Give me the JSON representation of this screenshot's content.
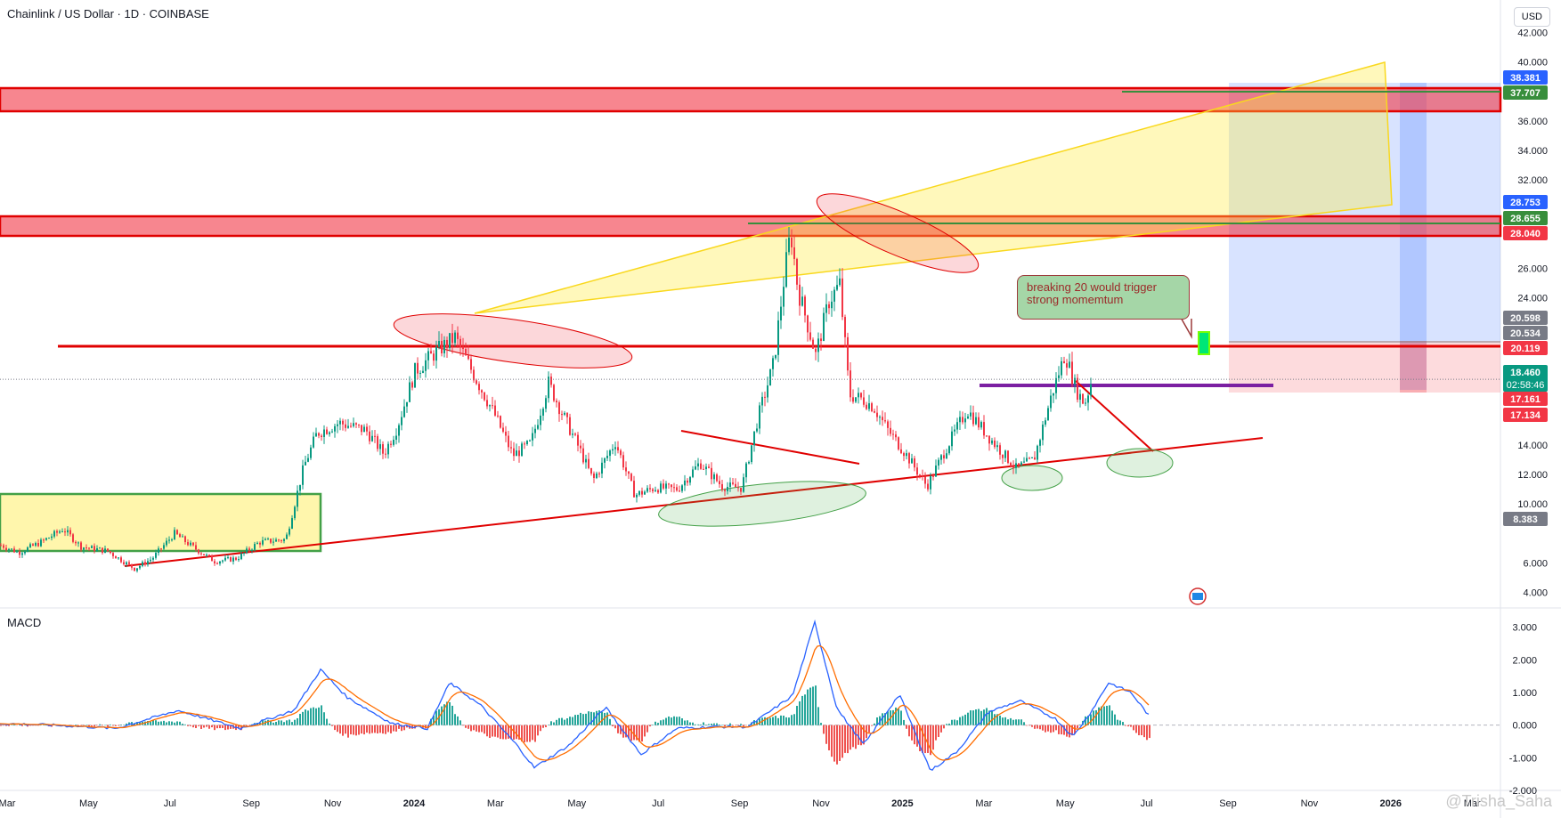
{
  "header": {
    "title": "Chainlink / US Dollar · 1D · COINBASE",
    "currency_button": "USD",
    "indicator_label": "MACD",
    "watermark": "@Trisha_Saha"
  },
  "annotation": {
    "text_line1": "breaking 20 would trigger",
    "text_line2": "strong momemtum"
  },
  "chart_data": {
    "type": "candlestick",
    "price_axis": {
      "ticks": [
        "42.000",
        "40.000",
        "36.000",
        "34.000",
        "32.000",
        "26.000",
        "24.000",
        "14.000",
        "12.000",
        "10.000",
        "6.000",
        "4.000"
      ],
      "ylim": [
        3.0,
        43.0
      ]
    },
    "price_labels": [
      {
        "value": "38.381",
        "color": "#2962ff"
      },
      {
        "value": "37.707",
        "color": "#388e3c"
      },
      {
        "value": "28.753",
        "color": "#2962ff"
      },
      {
        "value": "28.655",
        "color": "#388e3c"
      },
      {
        "value": "28.040",
        "color": "#f23645"
      },
      {
        "value": "20.598",
        "color": "#787b86"
      },
      {
        "value": "20.534",
        "color": "#787b86"
      },
      {
        "value": "20.119",
        "color": "#f23645"
      },
      {
        "value": "18.460",
        "color": "#089981",
        "extra": "02:58:46"
      },
      {
        "value": "17.161",
        "color": "#f23645"
      },
      {
        "value": "17.134",
        "color": "#f23645"
      },
      {
        "value": "8.383",
        "color": "#787b86"
      }
    ],
    "macd_axis": {
      "ticks": [
        "3.000",
        "2.000",
        "1.000",
        "0.000",
        "-1.000",
        "-2.000"
      ],
      "ylim": [
        -2.0,
        3.4
      ]
    },
    "time_axis": [
      "Mar",
      "May",
      "Jul",
      "Sep",
      "Nov",
      "2024",
      "Mar",
      "May",
      "Jul",
      "Sep",
      "Nov",
      "2025",
      "Mar",
      "May",
      "Jul",
      "Sep",
      "Nov",
      "2026",
      "Mar"
    ],
    "price_path": [
      [
        0,
        7.2
      ],
      [
        20,
        6.7
      ],
      [
        45,
        7.4
      ],
      [
        70,
        8.3
      ],
      [
        90,
        7.1
      ],
      [
        120,
        6.8
      ],
      [
        150,
        5.6
      ],
      [
        170,
        6.3
      ],
      [
        195,
        8.0
      ],
      [
        215,
        7.1
      ],
      [
        240,
        6.1
      ],
      [
        265,
        6.3
      ],
      [
        290,
        7.4
      ],
      [
        320,
        7.6
      ],
      [
        340,
        12.5
      ],
      [
        355,
        14.8
      ],
      [
        380,
        15.5
      ],
      [
        410,
        15.0
      ],
      [
        430,
        13.4
      ],
      [
        445,
        15.2
      ],
      [
        465,
        19.0
      ],
      [
        490,
        20.4
      ],
      [
        510,
        21.3
      ],
      [
        530,
        18.9
      ],
      [
        555,
        16.0
      ],
      [
        575,
        13.3
      ],
      [
        595,
        14.1
      ],
      [
        615,
        18.2
      ],
      [
        630,
        16.2
      ],
      [
        650,
        13.7
      ],
      [
        665,
        11.6
      ],
      [
        690,
        14.2
      ],
      [
        712,
        10.6
      ],
      [
        735,
        11.1
      ],
      [
        760,
        11.0
      ],
      [
        785,
        12.8
      ],
      [
        810,
        11.2
      ],
      [
        832,
        11.1
      ],
      [
        850,
        15.8
      ],
      [
        868,
        19.6
      ],
      [
        880,
        25.6
      ],
      [
        887,
        28.5
      ],
      [
        895,
        24.6
      ],
      [
        905,
        22.4
      ],
      [
        915,
        20.1
      ],
      [
        930,
        23.8
      ],
      [
        942,
        24.9
      ],
      [
        953,
        17.4
      ],
      [
        968,
        17.1
      ],
      [
        980,
        16.6
      ],
      [
        995,
        15.1
      ],
      [
        1015,
        13.5
      ],
      [
        1040,
        11.2
      ],
      [
        1060,
        13.6
      ],
      [
        1085,
        16.4
      ],
      [
        1110,
        14.5
      ],
      [
        1140,
        12.4
      ],
      [
        1160,
        13.0
      ],
      [
        1180,
        17.4
      ],
      [
        1195,
        20.2
      ],
      [
        1208,
        17.7
      ],
      [
        1217,
        16.8
      ],
      [
        1225,
        18.4
      ]
    ],
    "macd_path": [
      [
        0,
        0.05
      ],
      [
        60,
        0.0
      ],
      [
        130,
        -0.1
      ],
      [
        200,
        0.45
      ],
      [
        270,
        -0.1
      ],
      [
        330,
        0.45
      ],
      [
        360,
        1.7
      ],
      [
        390,
        0.85
      ],
      [
        440,
        0.05
      ],
      [
        480,
        -0.1
      ],
      [
        505,
        1.3
      ],
      [
        540,
        0.6
      ],
      [
        580,
        -0.6
      ],
      [
        600,
        -1.3
      ],
      [
        640,
        -0.6
      ],
      [
        680,
        0.55
      ],
      [
        720,
        -0.9
      ],
      [
        760,
        -0.1
      ],
      [
        800,
        -0.05
      ],
      [
        840,
        -0.05
      ],
      [
        890,
        0.9
      ],
      [
        915,
        3.15
      ],
      [
        940,
        0.5
      ],
      [
        970,
        -0.6
      ],
      [
        1010,
        0.95
      ],
      [
        1045,
        -1.4
      ],
      [
        1075,
        -0.8
      ],
      [
        1110,
        0.4
      ],
      [
        1145,
        0.75
      ],
      [
        1185,
        0.2
      ],
      [
        1205,
        -0.35
      ],
      [
        1225,
        0.4
      ],
      [
        1245,
        1.3
      ],
      [
        1270,
        1.0
      ],
      [
        1290,
        0.3
      ]
    ]
  }
}
